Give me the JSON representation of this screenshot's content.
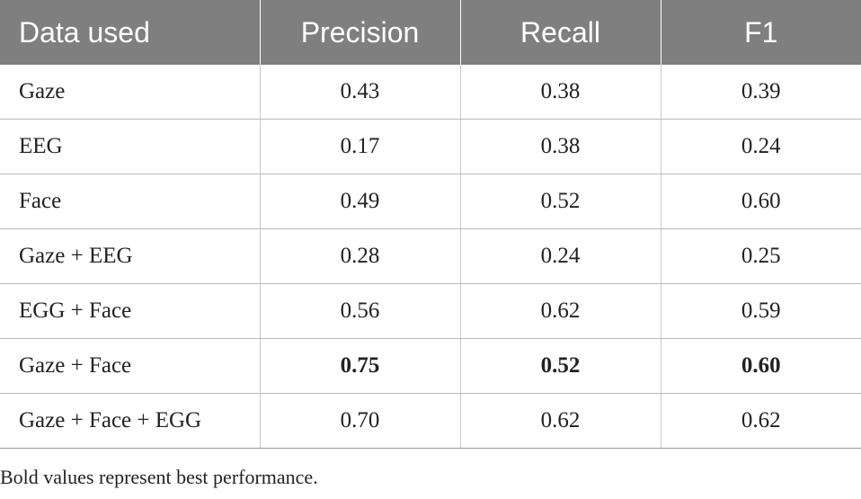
{
  "table": {
    "headers": [
      "Data used",
      "Precision",
      "Recall",
      "F1"
    ],
    "rows": [
      {
        "data_used": "Gaze",
        "precision": "0.43",
        "recall": "0.38",
        "f1": "0.39",
        "best": false
      },
      {
        "data_used": "EEG",
        "precision": "0.17",
        "recall": "0.38",
        "f1": "0.24",
        "best": false
      },
      {
        "data_used": "Face",
        "precision": "0.49",
        "recall": "0.52",
        "f1": "0.60",
        "best": false
      },
      {
        "data_used": "Gaze + EEG",
        "precision": "0.28",
        "recall": "0.24",
        "f1": "0.25",
        "best": false
      },
      {
        "data_used": "EGG + Face",
        "precision": "0.56",
        "recall": "0.62",
        "f1": "0.59",
        "best": false
      },
      {
        "data_used": "Gaze + Face",
        "precision": "0.75",
        "recall": "0.52",
        "f1": "0.60",
        "best": true
      },
      {
        "data_used": "Gaze + Face + EGG",
        "precision": "0.70",
        "recall": "0.62",
        "f1": "0.62",
        "best": false
      }
    ]
  },
  "footnote": "Bold values represent best performance."
}
